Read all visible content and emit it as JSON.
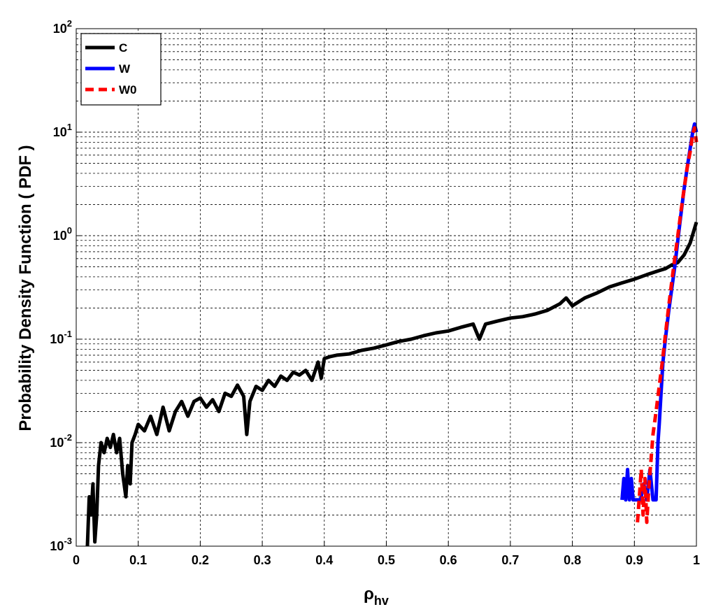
{
  "chart_data": {
    "type": "line",
    "xlabel": "ρ",
    "xlabel_sub": "hv",
    "ylabel": "Probability Density Function ( PDF )",
    "xlim": [
      0,
      1
    ],
    "ylim": [
      0.001,
      100
    ],
    "yscale": "log",
    "grid": true,
    "legend_position": "top-left",
    "x_ticks": [
      "0",
      "0.1",
      "0.2",
      "0.3",
      "0.4",
      "0.5",
      "0.6",
      "0.7",
      "0.8",
      "0.9",
      "1"
    ],
    "y_ticks": [
      {
        "base": "10",
        "exp": "-3"
      },
      {
        "base": "10",
        "exp": "-2"
      },
      {
        "base": "10",
        "exp": "-1"
      },
      {
        "base": "10",
        "exp": "0"
      },
      {
        "base": "10",
        "exp": "1"
      },
      {
        "base": "10",
        "exp": "2"
      }
    ],
    "series": [
      {
        "name": "C",
        "color": "#000000",
        "dash": "solid",
        "x": [
          0.018,
          0.021,
          0.024,
          0.027,
          0.03,
          0.033,
          0.036,
          0.04,
          0.045,
          0.05,
          0.055,
          0.06,
          0.065,
          0.07,
          0.075,
          0.08,
          0.083,
          0.087,
          0.09,
          0.095,
          0.1,
          0.11,
          0.12,
          0.13,
          0.14,
          0.15,
          0.16,
          0.17,
          0.18,
          0.19,
          0.2,
          0.21,
          0.22,
          0.23,
          0.24,
          0.25,
          0.26,
          0.27,
          0.275,
          0.28,
          0.29,
          0.3,
          0.31,
          0.32,
          0.33,
          0.34,
          0.35,
          0.36,
          0.37,
          0.38,
          0.39,
          0.395,
          0.4,
          0.41,
          0.42,
          0.44,
          0.46,
          0.48,
          0.5,
          0.52,
          0.54,
          0.56,
          0.58,
          0.6,
          0.62,
          0.64,
          0.65,
          0.66,
          0.68,
          0.7,
          0.72,
          0.74,
          0.76,
          0.78,
          0.79,
          0.8,
          0.82,
          0.84,
          0.86,
          0.88,
          0.9,
          0.92,
          0.94,
          0.95,
          0.96,
          0.97,
          0.98,
          0.99,
          1.0
        ],
        "y": [
          0.001,
          0.003,
          0.002,
          0.004,
          0.0011,
          0.002,
          0.006,
          0.01,
          0.008,
          0.011,
          0.009,
          0.012,
          0.008,
          0.011,
          0.005,
          0.003,
          0.006,
          0.004,
          0.01,
          0.012,
          0.015,
          0.013,
          0.018,
          0.012,
          0.022,
          0.013,
          0.02,
          0.025,
          0.018,
          0.025,
          0.027,
          0.022,
          0.026,
          0.02,
          0.03,
          0.028,
          0.036,
          0.028,
          0.012,
          0.025,
          0.035,
          0.032,
          0.04,
          0.035,
          0.044,
          0.04,
          0.048,
          0.045,
          0.05,
          0.04,
          0.06,
          0.042,
          0.065,
          0.068,
          0.07,
          0.072,
          0.078,
          0.082,
          0.088,
          0.095,
          0.1,
          0.108,
          0.115,
          0.12,
          0.13,
          0.14,
          0.1,
          0.14,
          0.15,
          0.16,
          0.165,
          0.175,
          0.19,
          0.22,
          0.25,
          0.21,
          0.25,
          0.28,
          0.32,
          0.35,
          0.38,
          0.42,
          0.46,
          0.48,
          0.52,
          0.55,
          0.65,
          0.85,
          1.35
        ]
      },
      {
        "name": "W",
        "color": "#0000ff",
        "dash": "solid",
        "x": [
          0.88,
          0.883,
          0.886,
          0.889,
          0.892,
          0.895,
          0.898,
          0.91,
          0.915,
          0.92,
          0.925,
          0.93,
          0.935,
          0.938,
          0.94,
          0.943,
          0.946,
          0.95,
          0.955,
          0.96,
          0.965,
          0.97,
          0.975,
          0.98,
          0.985,
          0.99,
          0.994,
          0.997,
          1.0
        ],
        "y": [
          0.0028,
          0.0045,
          0.0028,
          0.0055,
          0.0028,
          0.0045,
          0.0028,
          0.0028,
          0.004,
          0.0028,
          0.0055,
          0.0028,
          0.0028,
          0.01,
          0.015,
          0.03,
          0.06,
          0.1,
          0.18,
          0.3,
          0.5,
          0.9,
          1.6,
          2.8,
          4.5,
          7.0,
          10.0,
          12.0,
          10.0
        ]
      },
      {
        "name": "W0",
        "color": "#ff0000",
        "dash": "dashed",
        "x": [
          0.905,
          0.908,
          0.911,
          0.914,
          0.917,
          0.92,
          0.923,
          0.926,
          0.93,
          0.935,
          0.94,
          0.945,
          0.95,
          0.955,
          0.96,
          0.965,
          0.97,
          0.975,
          0.98,
          0.985,
          0.99,
          0.994,
          0.997,
          1.0
        ],
        "y": [
          0.0017,
          0.003,
          0.0055,
          0.002,
          0.0045,
          0.0017,
          0.0035,
          0.006,
          0.012,
          0.02,
          0.035,
          0.06,
          0.11,
          0.2,
          0.35,
          0.6,
          1.0,
          1.7,
          2.8,
          4.5,
          6.5,
          9.5,
          11.0,
          8.0
        ]
      }
    ]
  }
}
